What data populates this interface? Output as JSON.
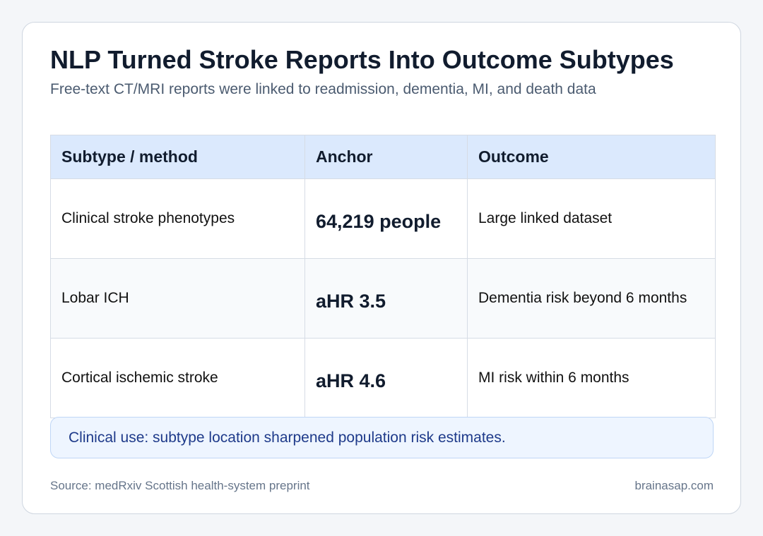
{
  "header": {
    "title": "NLP Turned Stroke Reports Into Outcome Subtypes",
    "subtitle": "Free-text CT/MRI reports were linked to readmission, dementia, MI, and death data"
  },
  "table": {
    "columns": [
      "Subtype / method",
      "Anchor",
      "Outcome"
    ],
    "rows": [
      [
        "Clinical stroke phenotypes",
        "64,219 people",
        "Large linked dataset"
      ],
      [
        "Lobar ICH",
        "aHR 3.5",
        "Dementia risk beyond 6 months"
      ],
      [
        "Cortical ischemic stroke",
        "aHR 4.6",
        "MI risk within 6 months"
      ]
    ]
  },
  "callout": "Clinical use: subtype location sharpened population risk estimates.",
  "footer": {
    "source": "Source: medRxiv Scottish health-system preprint",
    "site": "brainasap.com"
  }
}
